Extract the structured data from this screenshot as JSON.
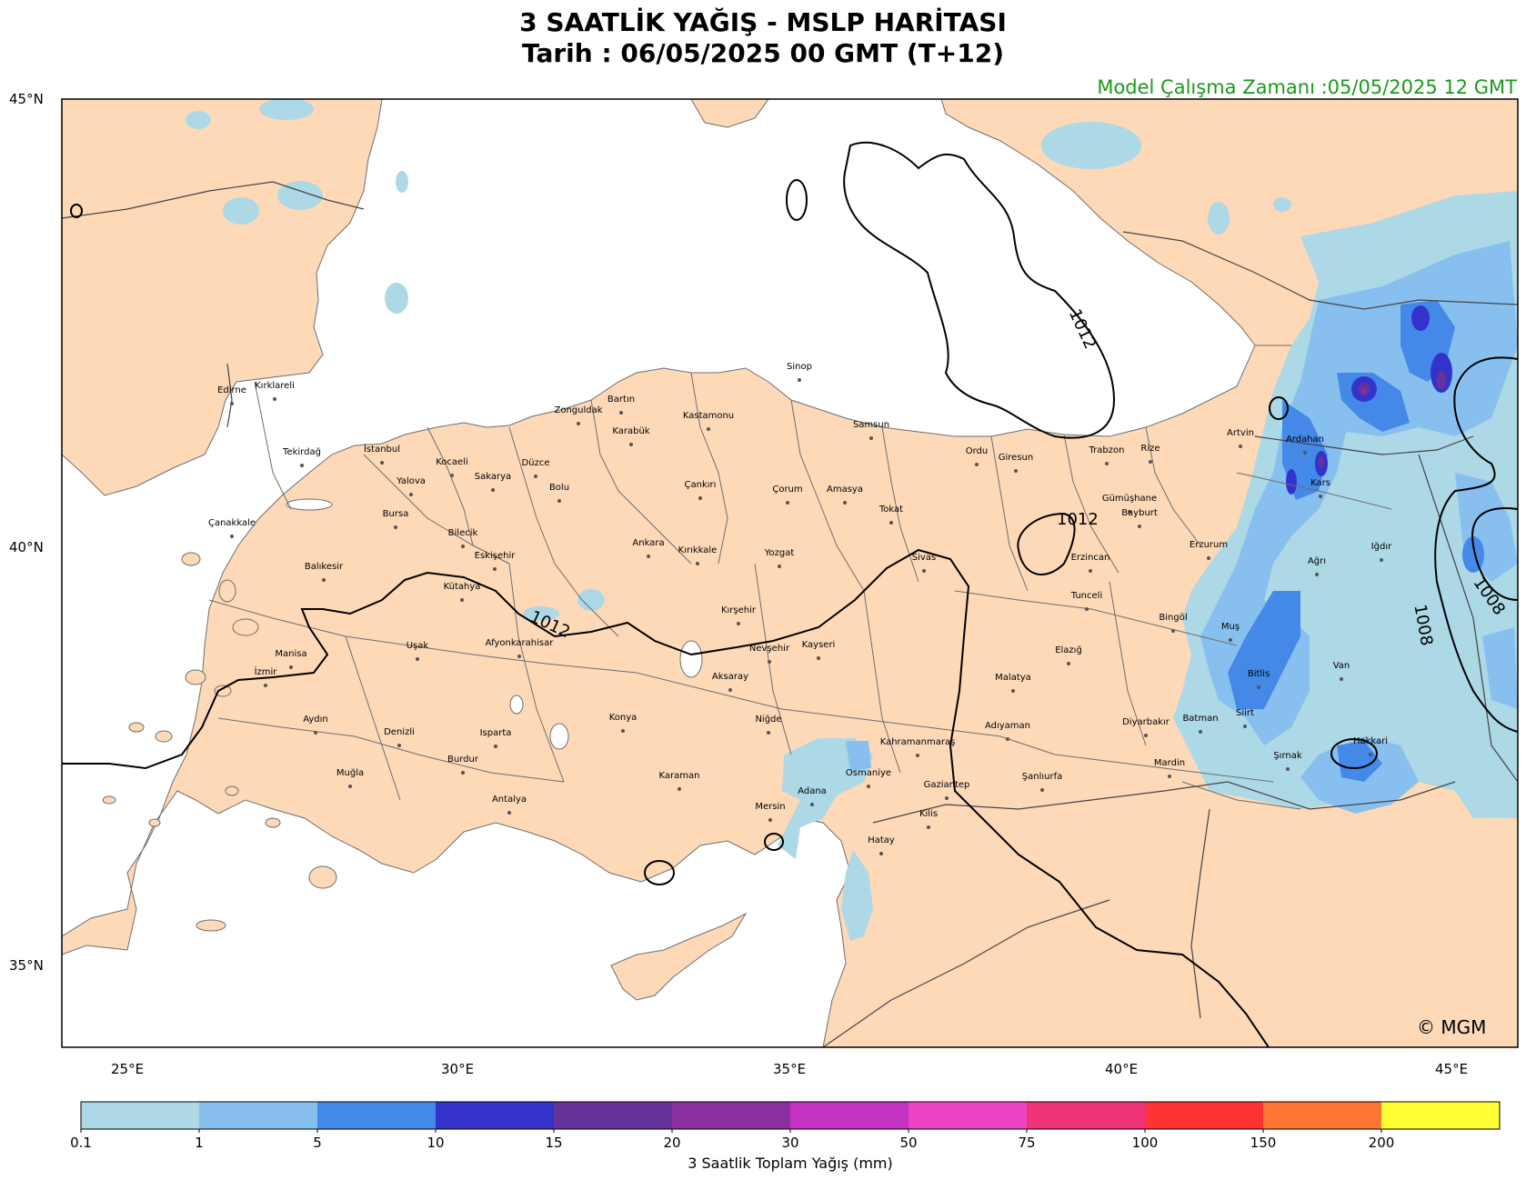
{
  "title": {
    "line1": "3 SAATLİK YAĞIŞ - MSLP HARİTASI",
    "line2": "Tarih : 06/05/2025  00 GMT (T+12)"
  },
  "model_run": "Model Çalışma Zamanı :05/05/2025  12 GMT",
  "copyright": "© MGM",
  "lat_labels": [
    "45°N",
    "40°N",
    "35°N"
  ],
  "lon_labels": [
    "25°E",
    "30°E",
    "35°E",
    "40°E",
    "45°E"
  ],
  "isobar_labels": [
    "1012",
    "1012",
    "1012",
    "1008",
    "1008"
  ],
  "cities": [
    "Sinop",
    "Edirne",
    "Kırklareli",
    "Bartın",
    "Zonguldak",
    "Kastamonu",
    "Samsun",
    "Karabük",
    "Tekirdağ",
    "İstanbul",
    "Kocaeli",
    "Düzce",
    "Sakarya",
    "Yalova",
    "Ordu",
    "Giresun",
    "Trabzon",
    "Rize",
    "Artvin",
    "Ardahan",
    "Kars",
    "Çankırı",
    "Çorum",
    "Amasya",
    "Bolu",
    "Gümüşhane",
    "Bayburt",
    "Tokat",
    "Bursa",
    "Çanakkale",
    "Bilecik",
    "Erzurum",
    "Ankara",
    "Iğdır",
    "Kırıkkale",
    "Sivas",
    "Erzincan",
    "Eskişehir",
    "Yozgat",
    "Balıkesir",
    "Ağrı",
    "Kütahya",
    "Tunceli",
    "Kırşehir",
    "Bingöl",
    "Muş",
    "Afyonkarahisar",
    "Nevşehir",
    "Kayseri",
    "Uşak",
    "Manisa",
    "Elazığ",
    "Van",
    "Aksaray",
    "İzmir",
    "Bitlis",
    "Malatya",
    "Niğde",
    "Diyarbakır",
    "Siirt",
    "Batman",
    "Aydın",
    "Denizli",
    "Isparta",
    "Konya",
    "Adıyaman",
    "Hakkari",
    "Kahramanmaraş",
    "Burdur",
    "Şırnak",
    "Mardin",
    "Muğla",
    "Karaman",
    "Osmaniye",
    "Şanlıurfa",
    "Gaziantep",
    "Antalya",
    "Adana",
    "Mersin",
    "Kilis",
    "Hatay"
  ],
  "colorbar": {
    "title": "3 Saatlik Toplam Yağış (mm)",
    "ticks": [
      "0.1",
      "1",
      "5",
      "10",
      "15",
      "20",
      "30",
      "50",
      "75",
      "100",
      "150",
      "200"
    ],
    "colors": [
      "#add8e6",
      "#87bfef",
      "#4488e8",
      "#3333cc",
      "#663399",
      "#8a2f9e",
      "#c332c2",
      "#ee44c4",
      "#ee3377",
      "#ff3333",
      "#ff7733",
      "#ffff33"
    ]
  },
  "map_colors": {
    "land": "#fdd9b8",
    "sea": "#ffffff",
    "border": "#6e6e6e",
    "isobar": "#000000"
  }
}
